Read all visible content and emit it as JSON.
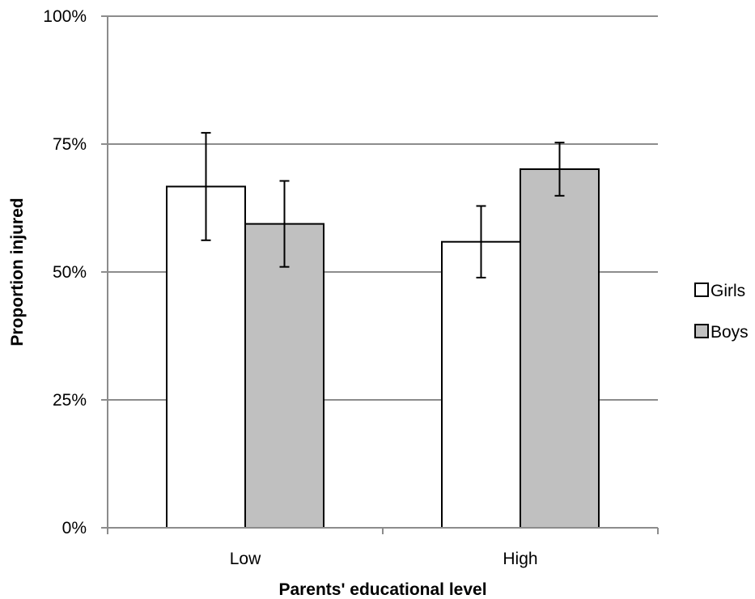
{
  "chart_data": {
    "type": "bar",
    "title": "",
    "xlabel": "Parents' educational level",
    "ylabel": "Proportion injured",
    "categories": [
      "Low",
      "High"
    ],
    "ylim": [
      0,
      100
    ],
    "yticks": [
      0,
      25,
      50,
      75,
      100
    ],
    "ytick_labels": [
      "0%",
      "25%",
      "50%",
      "75%",
      "100%"
    ],
    "grid": true,
    "legend_position": "right",
    "series": [
      {
        "name": "Girls",
        "color": "#ffffff",
        "values": [
          66.7,
          55.9
        ],
        "error_low": [
          56.2,
          48.9
        ],
        "error_high": [
          77.2,
          62.9
        ]
      },
      {
        "name": "Boys",
        "color": "#c0c0c0",
        "values": [
          59.4,
          70.1
        ],
        "error_low": [
          51.0,
          64.9
        ],
        "error_high": [
          67.8,
          75.3
        ]
      }
    ]
  }
}
